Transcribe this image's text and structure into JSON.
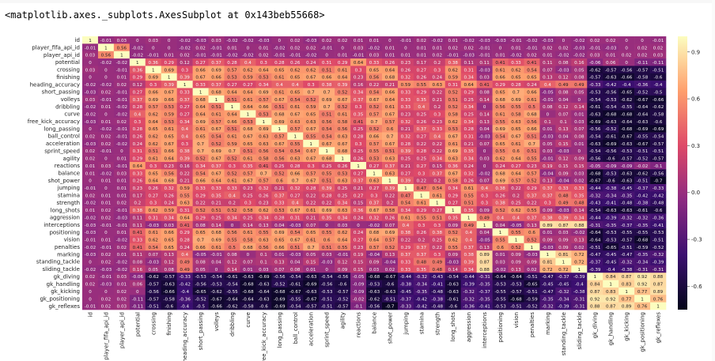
{
  "output_repr": "<matplotlib.axes._subplots.AxesSubplot at 0x143beb55668>",
  "chart_data": {
    "type": "heatmap",
    "labels": [
      "id",
      "player_fifa_api_id",
      "player_api_id",
      "potential",
      "crossing",
      "finishing",
      "heading_accuracy",
      "short_passing",
      "volleys",
      "dribbling",
      "curve",
      "free_kick_accuracy",
      "long_passing",
      "ball_control",
      "acceleration",
      "sprint_speed",
      "agility",
      "reactions",
      "balance",
      "shot_power",
      "jumping",
      "stamina",
      "strength",
      "long_shots",
      "aggression",
      "interceptions",
      "positioning",
      "vision",
      "penalties",
      "marking",
      "standing_tackle",
      "sliding_tackle",
      "gk_diving",
      "gk_handling",
      "gk_kicking",
      "gk_positioning",
      "gk_reflexes"
    ],
    "colorbar": {
      "vmin": -0.75,
      "vmax": 1.0,
      "ticks": [
        "0.9",
        "0.6",
        "0.3",
        "0.0",
        "-0.3",
        "-0.6"
      ],
      "tick_values": [
        0.9,
        0.6,
        0.3,
        0.0,
        -0.3,
        -0.6
      ]
    },
    "colormap": [
      "#03051a",
      "#3b0f70",
      "#8c2981",
      "#de4968",
      "#fe9f6d",
      "#fcfdbf"
    ],
    "annotations": "correlation values printed in each cell"
  }
}
